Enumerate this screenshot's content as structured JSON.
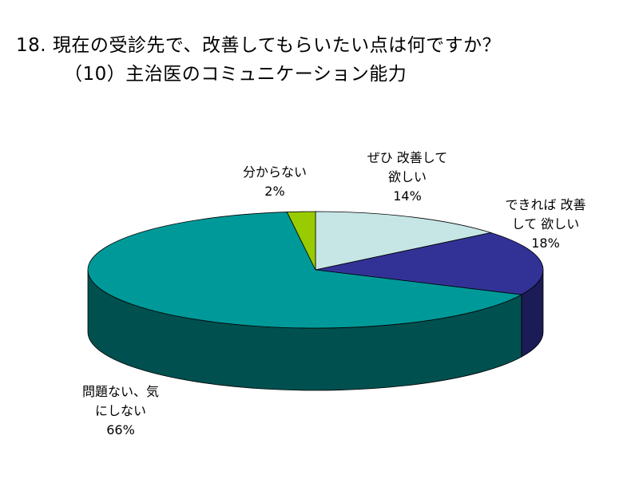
{
  "title_line1": "18. 現在の受診先で、改善してもらいたい点は何ですか？",
  "title_line2": "（10）主治医のコミュニケーション能力",
  "chart_data": {
    "type": "pie",
    "title": "18. 現在の受診先で、改善してもらいたい点は何ですか？ （10）主治医のコミュニケーション能力",
    "three_d": true,
    "slices": [
      {
        "label_lines": [
          "ぜひ 改善して",
          "欲しい"
        ],
        "percent_text": "14%",
        "value": 14,
        "color": "#c6e6e6",
        "side_color": "#7fa7a7"
      },
      {
        "label_lines": [
          "できれば 改善",
          "して 欲しい"
        ],
        "percent_text": "18%",
        "value": 18,
        "color": "#323296",
        "side_color": "#1b1b55"
      },
      {
        "label_lines": [
          "問題ない、気",
          "にしない"
        ],
        "percent_text": "66%",
        "value": 66,
        "color": "#009999",
        "side_color": "#005050"
      },
      {
        "label_lines": [
          "分からない"
        ],
        "percent_text": "2%",
        "value": 2,
        "color": "#99cc00",
        "side_color": "#5c7a00"
      }
    ]
  }
}
